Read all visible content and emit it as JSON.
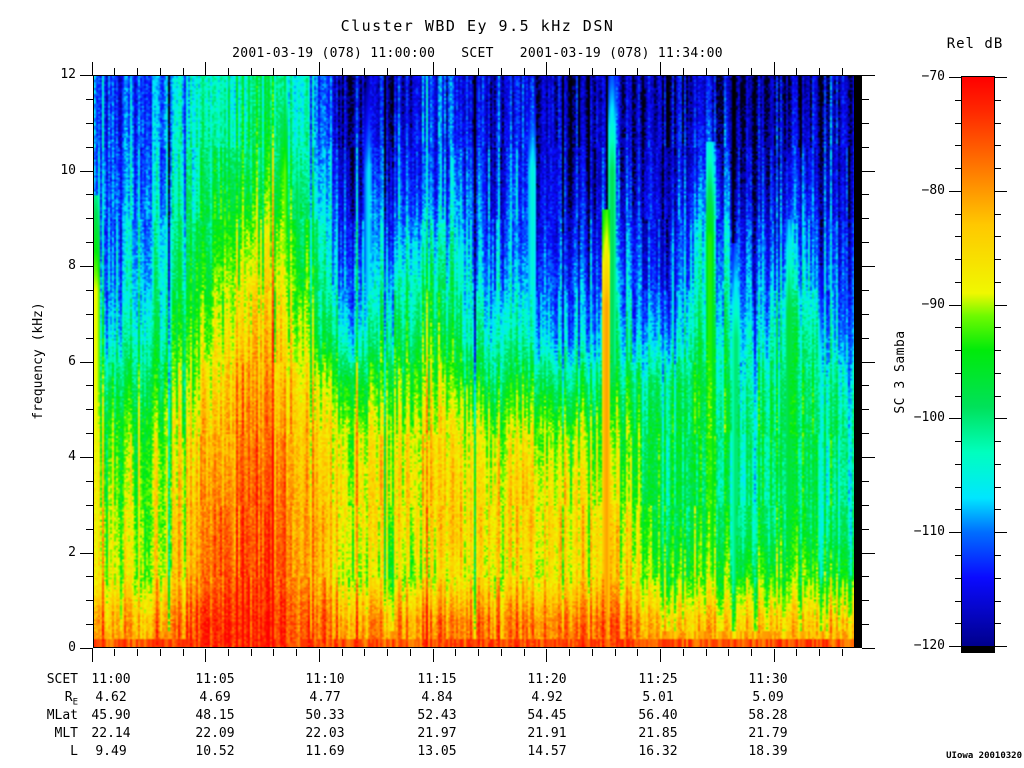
{
  "chart_data": {
    "type": "spectrogram",
    "title": "Cluster WBD Ey 9.5 kHz DSN",
    "subtitle": {
      "start": "2001-03-19 (078) 11:00:00",
      "center_label": "SCET",
      "end": "2001-03-19 (078) 11:34:00"
    },
    "x_axis": {
      "start": "11:00",
      "end": "11:34",
      "minutes_span": 34,
      "major_tick_minutes": [
        0,
        5,
        10,
        15,
        20,
        25,
        30
      ],
      "minor_tick_step_minutes": 1,
      "major_tick_labels": [
        "11:00",
        "11:05",
        "11:10",
        "11:15",
        "11:20",
        "11:25",
        "11:30"
      ]
    },
    "y_axis": {
      "label": "frequency (kHz)",
      "min": 0,
      "max": 12,
      "major_ticks": [
        0,
        2,
        4,
        6,
        8,
        10,
        12
      ],
      "minor_tick_step": 0.5
    },
    "colorbar": {
      "label": "Rel dB",
      "side_label": "SC 3 Samba",
      "max_db": -70,
      "min_db": -120,
      "major_tick_labels": [
        "−70",
        "−80",
        "−90",
        "−100",
        "−110",
        "−120"
      ],
      "minor_tick_step_db": 2,
      "colormap_stops": [
        [
          -126,
          "#000000"
        ],
        [
          -121,
          "#000028"
        ],
        [
          -120,
          "#00008C"
        ],
        [
          -114,
          "#0A0AFF"
        ],
        [
          -110,
          "#006EFF"
        ],
        [
          -107,
          "#00E6FF"
        ],
        [
          -103,
          "#00FFBE"
        ],
        [
          -99,
          "#00E15A"
        ],
        [
          -94,
          "#00EB0A"
        ],
        [
          -91,
          "#6EFA00"
        ],
        [
          -89,
          "#F0F800"
        ],
        [
          -83,
          "#FFC800"
        ],
        [
          -78,
          "#FF7800"
        ],
        [
          -73,
          "#FF2800"
        ],
        [
          -70,
          "#FF0000"
        ]
      ]
    },
    "spectrum_grid": {
      "description": "approximate relative power (dB) on 2-minute x 1-kHz bins; rows top to bottom = 11-12 kHz down to 0-1 kHz; columns left to right = 11:00 to 11:34",
      "time_bin_minutes": 2,
      "freq_bin_khz": 1,
      "db": [
        [
          -113,
          -110,
          -104,
          -100,
          -103,
          -118,
          -116,
          -113,
          -116,
          -114,
          -119,
          -116,
          -119,
          -116,
          -118,
          -117,
          -118
        ],
        [
          -112,
          -109,
          -102,
          -98,
          -101,
          -117,
          -114,
          -112,
          -115,
          -113,
          -118,
          -115,
          -118,
          -113,
          -117,
          -115,
          -117
        ],
        [
          -111,
          -107,
          -100,
          -94,
          -98,
          -115,
          -112,
          -110,
          -113,
          -112,
          -117,
          -113,
          -117,
          -108,
          -116,
          -112,
          -116
        ],
        [
          -110,
          -105,
          -97,
          -90,
          -94,
          -113,
          -108,
          -104,
          -111,
          -110,
          -115,
          -110,
          -116,
          -105,
          -114,
          -108,
          -115
        ],
        [
          -108,
          -103,
          -94,
          -86,
          -91,
          -110,
          -103,
          -99,
          -108,
          -107,
          -112,
          -107,
          -114,
          -102,
          -111,
          -104,
          -113
        ],
        [
          -104,
          -100,
          -91,
          -83,
          -88,
          -105,
          -98,
          -95,
          -104,
          -103,
          -109,
          -103,
          -110,
          -99,
          -107,
          -100,
          -110
        ],
        [
          -98,
          -96,
          -87,
          -80,
          -85,
          -95,
          -92,
          -90,
          -97,
          -95,
          -100,
          -97,
          -101,
          -96,
          -103,
          -97,
          -105
        ],
        [
          -93,
          -92,
          -84,
          -78,
          -83,
          -89,
          -87,
          -86,
          -90,
          -88,
          -92,
          -91,
          -99,
          -96,
          -100,
          -96,
          -102
        ],
        [
          -91,
          -90,
          -82,
          -76,
          -81,
          -87,
          -85,
          -84,
          -87,
          -85,
          -88,
          -88,
          -99,
          -97,
          -101,
          -97,
          -103
        ],
        [
          -90,
          -89,
          -80,
          -75,
          -80,
          -86,
          -86,
          -85,
          -86,
          -84,
          -86,
          -85,
          -98,
          -96,
          -100,
          -96,
          -102
        ],
        [
          -89,
          -88,
          -79,
          -74,
          -79,
          -88,
          -89,
          -88,
          -88,
          -86,
          -87,
          -84,
          -94,
          -92,
          -95,
          -92,
          -97
        ],
        [
          -82,
          -80,
          -74,
          -72,
          -76,
          -80,
          -80,
          -79,
          -79,
          -78,
          -78,
          -76,
          -84,
          -83,
          -85,
          -83,
          -86
        ]
      ]
    },
    "spikes": [
      {
        "t_min": 0.15,
        "f_max_khz": 9.5,
        "db": -88
      },
      {
        "t_min": 8.45,
        "f_max_khz": 12,
        "db": -91
      },
      {
        "t_min": 9.0,
        "f_max_khz": 11.5,
        "db": -98
      },
      {
        "t_min": 12.15,
        "f_max_khz": 12,
        "db": -106
      },
      {
        "t_min": 16.2,
        "f_max_khz": 10,
        "db": -103
      },
      {
        "t_min": 19.35,
        "f_max_khz": 12,
        "db": -104
      },
      {
        "t_min": 22.6,
        "f_max_khz": 9.2,
        "db": -80
      },
      {
        "t_min": 22.85,
        "f_max_khz": 12,
        "db": -98
      },
      {
        "t_min": 27.15,
        "f_max_khz": 10.6,
        "db": -92
      },
      {
        "t_min": 28.3,
        "f_max_khz": 8.5,
        "db": -99
      },
      {
        "t_min": 30.65,
        "f_max_khz": 9,
        "db": -96
      },
      {
        "t_min": 31.9,
        "f_max_khz": 8,
        "db": -102
      }
    ],
    "ephemeris": {
      "rows": [
        {
          "label": "SCET",
          "sub": "",
          "values": [
            "11:00",
            "11:05",
            "11:10",
            "11:15",
            "11:20",
            "11:25",
            "11:30"
          ]
        },
        {
          "label": "R",
          "sub": "E",
          "values": [
            "4.62",
            "4.69",
            "4.77",
            "4.84",
            "4.92",
            "5.01",
            "5.09"
          ]
        },
        {
          "label": "MLat",
          "sub": "",
          "values": [
            "45.90",
            "48.15",
            "50.33",
            "52.43",
            "54.45",
            "56.40",
            "58.28"
          ]
        },
        {
          "label": "MLT",
          "sub": "",
          "values": [
            "22.14",
            "22.09",
            "22.03",
            "21.97",
            "21.91",
            "21.85",
            "21.79"
          ]
        },
        {
          "label": "L",
          "sub": "",
          "values": [
            "9.49",
            "10.52",
            "11.69",
            "13.05",
            "14.57",
            "16.32",
            "18.39"
          ]
        }
      ]
    }
  },
  "footer": {
    "credit": "UIowa 20010320"
  }
}
